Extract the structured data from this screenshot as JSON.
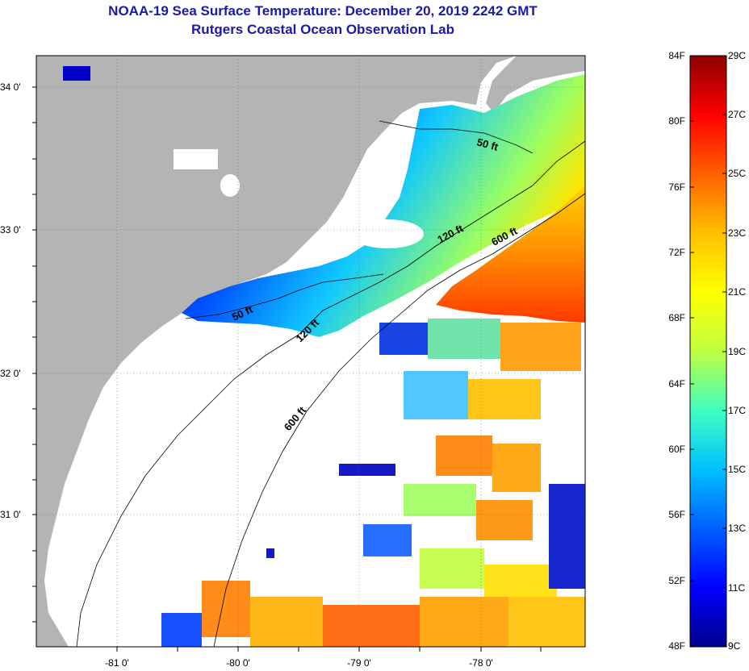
{
  "title": {
    "line1": "NOAA-19 Sea Surface Temperature:  December 20, 2019 2242 GMT",
    "line2": "Rutgers Coastal Ocean Observation Lab"
  },
  "map": {
    "lat_ticks": [
      "34 0'",
      "33 0'",
      "32 0'",
      "31 0'"
    ],
    "lon_ticks": [
      "-81 0'",
      "-80 0'",
      "-79 0'",
      "-78 0'"
    ],
    "contour_labels": [
      "50 ft",
      "120 ft",
      "600 ft",
      "50 ft",
      "120 ft",
      "600 ft"
    ],
    "colors": {
      "land": "#b4b4b4",
      "cloud_or_no_data": "#ffffff",
      "cold": "#00008c",
      "warm": "#8c0000"
    }
  },
  "colorbar": {
    "fahrenheit_labels": [
      "84F",
      "80F",
      "76F",
      "72F",
      "68F",
      "64F",
      "60F",
      "56F",
      "52F",
      "48F"
    ],
    "celsius_labels": [
      "29C",
      "27C",
      "25C",
      "23C",
      "21C",
      "19C",
      "17C",
      "15C",
      "13C",
      "11C",
      "9C"
    ],
    "range_f": [
      48,
      84
    ],
    "range_c": [
      9,
      29
    ],
    "gradient": [
      "#00008c",
      "#0000ff",
      "#0060ff",
      "#00c0ff",
      "#40ffc0",
      "#c0ff40",
      "#ffff00",
      "#ffc000",
      "#ff6000",
      "#ff0000",
      "#8c0000"
    ]
  }
}
